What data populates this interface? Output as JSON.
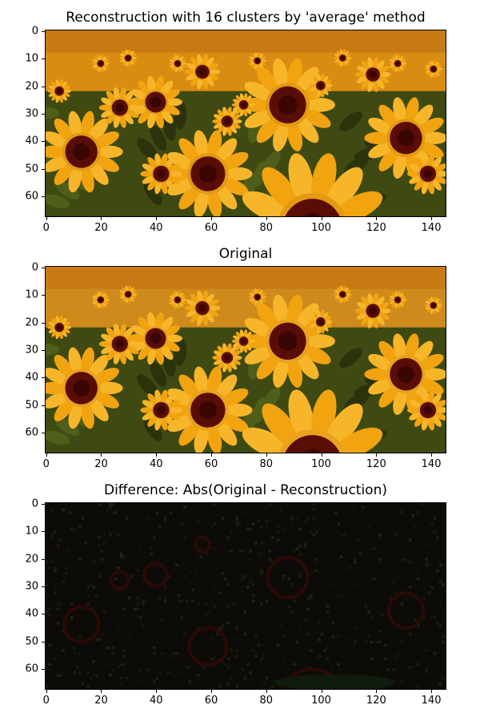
{
  "panels": [
    {
      "key": "reconstruction",
      "title": "Reconstruction with 16 clusters by 'average' method",
      "yticks": [
        "0",
        "10",
        "20",
        "30",
        "40",
        "50",
        "60"
      ],
      "xticks": [
        "0",
        "20",
        "40",
        "60",
        "80",
        "100",
        "120",
        "140"
      ]
    },
    {
      "key": "original",
      "title": "Original",
      "yticks": [
        "0",
        "10",
        "20",
        "30",
        "40",
        "50",
        "60"
      ],
      "xticks": [
        "0",
        "20",
        "40",
        "60",
        "80",
        "100",
        "120",
        "140"
      ]
    },
    {
      "key": "difference",
      "title": "Difference: Abs(Original - Reconstruction)",
      "yticks": [
        "0",
        "10",
        "20",
        "30",
        "40",
        "50",
        "60"
      ],
      "xticks": [
        "0",
        "20",
        "40",
        "60",
        "80",
        "100",
        "120",
        "140"
      ]
    }
  ],
  "colors": {
    "sky": "#c77a14",
    "petal": "#f2a310",
    "petal_light": "#f7b62a",
    "center": "#5a0d05",
    "center_dark": "#3a0603",
    "leaf": "#3e4a12",
    "leaf_dark": "#2a330b",
    "diff_bg": "#0d0b07"
  }
}
